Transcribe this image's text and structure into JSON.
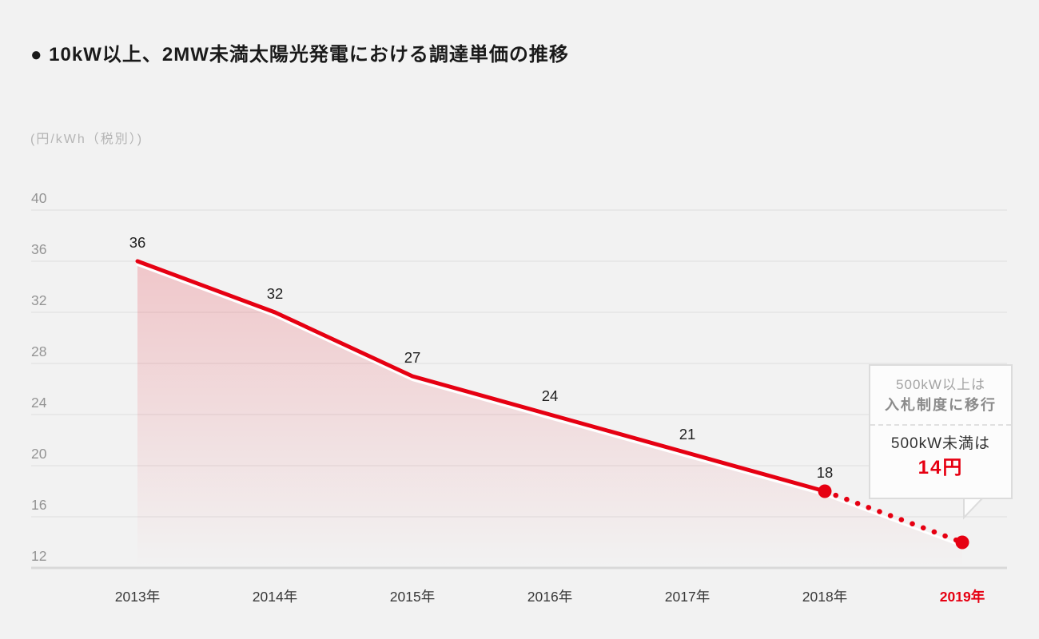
{
  "page": {
    "title": "● 10kW以上、2MW未満太陽光発電における調達単価の推移",
    "unit_label": "(円/kWh（税別）)"
  },
  "colors": {
    "background": "#f2f2f2",
    "accent_red": "#e60012",
    "grid_line": "#e2e2e2",
    "axis_line": "#d9d9d9",
    "tick_text": "#949494",
    "x_label_text": "#383838",
    "value_label_text": "#1f1f1f",
    "area_top": "rgba(230,0,18,0.18)",
    "area_bottom": "rgba(230,0,18,0)"
  },
  "chart_data": {
    "type": "line",
    "title": "10kW以上、2MW未満太陽光発電における調達単価の推移",
    "ylabel": "円/kWh（税別）",
    "categories": [
      "2013年",
      "2014年",
      "2015年",
      "2016年",
      "2017年",
      "2018年",
      "2019年"
    ],
    "values": [
      36,
      32,
      27,
      24,
      21,
      18,
      14
    ],
    "value_labels": [
      "36",
      "32",
      "27",
      "24",
      "21",
      "18"
    ],
    "solid_segment_end_index": 5,
    "dotted_segment_indices": [
      5,
      6
    ],
    "marker_indices": [
      5,
      6
    ],
    "highlighted_category_index": 6,
    "yticks": [
      40,
      36,
      32,
      28,
      24,
      20,
      16,
      12
    ],
    "ylim": [
      12,
      40
    ],
    "grid": true,
    "legend": false,
    "area_fill": true
  },
  "callout": {
    "upper_line1": "500kW以上は",
    "upper_line2": "入札制度に移行",
    "lower_line1": "500kW未満は",
    "lower_line2": "14円"
  }
}
